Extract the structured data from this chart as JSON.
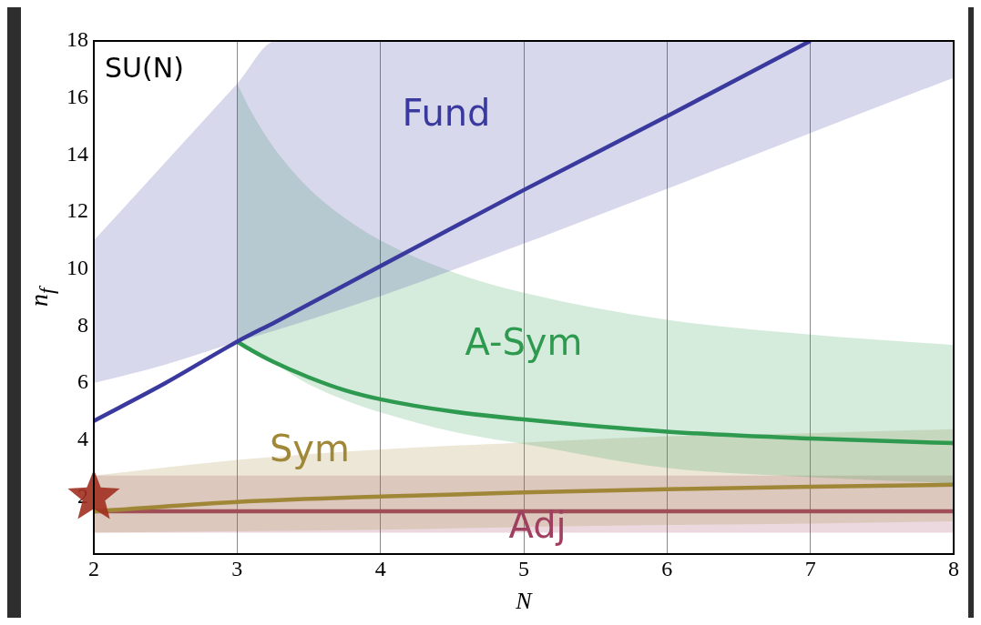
{
  "chart_data": {
    "type": "line",
    "xlabel": "N",
    "ylabel": "n$_{f}$",
    "xlim": [
      2,
      8
    ],
    "ylim": [
      0,
      18
    ],
    "xticks": [
      2,
      3,
      4,
      5,
      6,
      7,
      8
    ],
    "yticks": [
      2,
      4,
      6,
      8,
      10,
      12,
      14,
      16,
      18
    ],
    "grid": "x",
    "legend": false,
    "annotations": [
      "SU(N)"
    ],
    "series": [
      {
        "name": "Fund",
        "color": "#3a3a9e",
        "x": [
          2,
          2.5,
          3,
          3.27,
          4,
          5,
          6,
          7,
          8
        ],
        "values": [
          4.67,
          6.0,
          7.45,
          8.15,
          10.1,
          12.77,
          15.36,
          18,
          null
        ],
        "lower": [
          6,
          6.65,
          7.45,
          7.85,
          9.05,
          10.89,
          12.81,
          14.77,
          16.71
        ],
        "upper": [
          11,
          13.75,
          16.5,
          18,
          18,
          18,
          18,
          18,
          18
        ]
      },
      {
        "name": "A-Sym",
        "color": "#2e9a50",
        "x": [
          3,
          3.1,
          3.25,
          3.5,
          3.75,
          4,
          4.5,
          5,
          6,
          7,
          8
        ],
        "values": [
          7.45,
          7.15,
          6.75,
          6.2,
          5.75,
          5.43,
          5.0,
          4.72,
          4.29,
          4.05,
          3.89
        ],
        "lower": [
          7.45,
          7.1,
          6.7,
          5.95,
          5.4,
          4.97,
          4.3,
          3.86,
          3.02,
          2.7,
          2.48
        ],
        "upper": [
          16.5,
          15.5,
          14.3,
          12.83,
          11.79,
          11,
          9.9,
          9.17,
          8.22,
          7.7,
          7.33
        ]
      },
      {
        "name": "Sym",
        "color": "#a08838",
        "x": [
          2,
          3,
          4,
          5,
          6,
          7,
          8
        ],
        "values": [
          1.5,
          1.83,
          2.02,
          2.16,
          2.27,
          2.36,
          2.43
        ],
        "lower": [
          0.75,
          0.8,
          0.85,
          0.95,
          1.02,
          1.07,
          1.15
        ],
        "upper": [
          2.75,
          3.3,
          3.67,
          3.91,
          4.13,
          4.24,
          4.38
        ]
      },
      {
        "name": "Adj",
        "color": "#a04060",
        "x": [
          2,
          3,
          4,
          5,
          6,
          7,
          8
        ],
        "values": [
          1.5,
          1.5,
          1.5,
          1.5,
          1.5,
          1.5,
          1.5
        ],
        "lower": [
          0.75,
          0.75,
          0.75,
          0.75,
          0.75,
          0.75,
          0.75
        ],
        "upper": [
          2.75,
          2.75,
          2.75,
          2.75,
          2.75,
          2.75,
          2.75
        ]
      },
      {
        "type": "scatter",
        "marker": "star",
        "color": "#a03020",
        "x": [
          2
        ],
        "values": [
          2
        ]
      }
    ]
  }
}
